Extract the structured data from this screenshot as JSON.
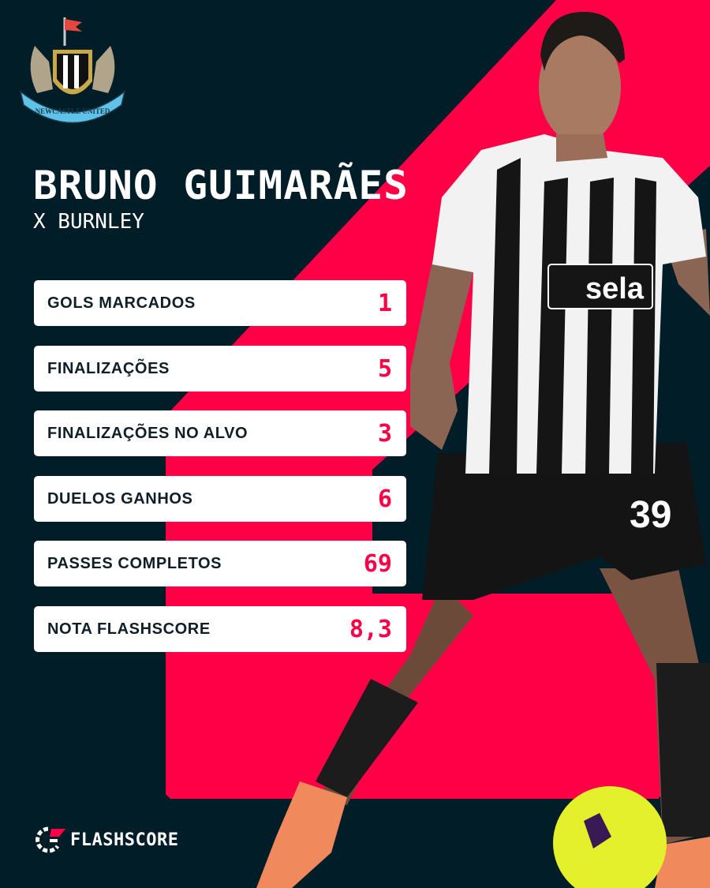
{
  "colors": {
    "background": "#011d28",
    "accent": "#ff0046",
    "card": "#ffffff",
    "label": "#0f1e27"
  },
  "club": {
    "crest_text": "NEWCASTLE UNITED"
  },
  "header": {
    "player_name": "BRUNO GUIMARÃES",
    "opponent": "X BURNLEY"
  },
  "stats": [
    {
      "label": "GOLS MARCADOS",
      "value": "1"
    },
    {
      "label": "FINALIZAÇÕES",
      "value": "5"
    },
    {
      "label": "FINALIZAÇÕES NO ALVO",
      "value": "3"
    },
    {
      "label": "DUELOS GANHOS",
      "value": "6"
    },
    {
      "label": "PASSES COMPLETOS",
      "value": "69"
    },
    {
      "label": "NOTA FLASHSCORE",
      "value": "8,3"
    }
  ],
  "footer": {
    "brand": "FLASHSCORE"
  },
  "photo": {
    "shirt_sponsor": "sela",
    "shirt_number": "39"
  }
}
